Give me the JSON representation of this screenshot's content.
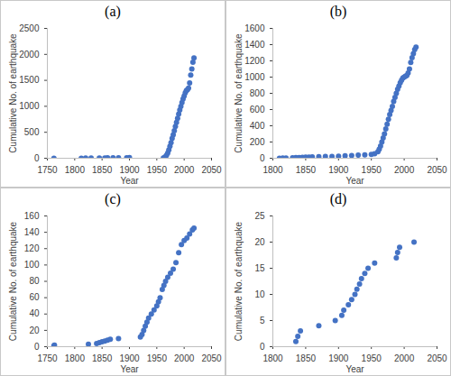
{
  "chart_data": [
    {
      "type": "scatter",
      "title": "(a)",
      "x_label": "Year",
      "y_label": "Cumulative No. of earthquake",
      "color": "#4472c4",
      "marker": "circle",
      "grid": false,
      "x": [
        1762,
        1812,
        1820,
        1830,
        1845,
        1855,
        1860,
        1870,
        1880,
        1895,
        1900,
        1962,
        1964,
        1966,
        1968,
        1970,
        1972,
        1974,
        1976,
        1978,
        1980,
        1982,
        1984,
        1986,
        1988,
        1990,
        1992,
        1994,
        1996,
        1998,
        2000,
        2002,
        2004,
        2006,
        2008,
        2010,
        2012,
        2014,
        2016,
        2018
      ],
      "values": [
        1,
        2,
        3,
        4,
        5,
        6,
        7,
        8,
        9,
        10,
        11,
        5,
        15,
        30,
        60,
        100,
        160,
        230,
        300,
        380,
        450,
        530,
        610,
        690,
        770,
        850,
        930,
        1000,
        1070,
        1140,
        1200,
        1260,
        1300,
        1320,
        1350,
        1450,
        1600,
        1720,
        1850,
        1930
      ],
      "xlim": [
        1750,
        2050
      ],
      "xticks": [
        1750,
        1800,
        1850,
        1900,
        1950,
        2000,
        2050
      ],
      "ylim": [
        0,
        2500
      ],
      "yticks": [
        0,
        500,
        1000,
        1500,
        2000,
        2500
      ]
    },
    {
      "type": "scatter",
      "title": "(b)",
      "x_label": "Year",
      "y_label": "Cumulative No. of earthquake",
      "color": "#4472c4",
      "marker": "circle",
      "grid": false,
      "x": [
        1810,
        1815,
        1820,
        1830,
        1835,
        1840,
        1845,
        1850,
        1855,
        1860,
        1870,
        1880,
        1890,
        1900,
        1910,
        1920,
        1930,
        1940,
        1950,
        1955,
        1960,
        1962,
        1964,
        1966,
        1968,
        1970,
        1972,
        1974,
        1976,
        1978,
        1980,
        1982,
        1984,
        1986,
        1988,
        1990,
        1992,
        1994,
        1996,
        1998,
        2000,
        2002,
        2004,
        2006,
        2008,
        2010,
        2012,
        2014,
        2016,
        2018
      ],
      "values": [
        1,
        2,
        3,
        5,
        7,
        9,
        11,
        13,
        15,
        17,
        19,
        21,
        23,
        26,
        30,
        34,
        38,
        42,
        48,
        55,
        80,
        110,
        150,
        200,
        250,
        300,
        360,
        420,
        480,
        540,
        590,
        640,
        700,
        750,
        800,
        850,
        890,
        930,
        960,
        990,
        1000,
        1010,
        1020,
        1050,
        1100,
        1180,
        1240,
        1290,
        1340,
        1370
      ],
      "xlim": [
        1800,
        2050
      ],
      "xticks": [
        1800,
        1850,
        1900,
        1950,
        2000,
        2050
      ],
      "ylim": [
        0,
        1600
      ],
      "yticks": [
        0,
        200,
        400,
        600,
        800,
        1000,
        1200,
        1400,
        1600
      ]
    },
    {
      "type": "scatter",
      "title": "(c)",
      "x_label": "Year",
      "y_label": "Cumulative No. of earthquake",
      "color": "#4472c4",
      "marker": "circle",
      "grid": false,
      "x": [
        1762,
        1763,
        1825,
        1840,
        1845,
        1850,
        1855,
        1860,
        1865,
        1880,
        1920,
        1923,
        1926,
        1929,
        1932,
        1935,
        1940,
        1945,
        1950,
        1953,
        1956,
        1960,
        1963,
        1966,
        1970,
        1975,
        1980,
        1985,
        1990,
        1995,
        2000,
        2005,
        2010,
        2015,
        2018
      ],
      "values": [
        1,
        2,
        3,
        4,
        5,
        6,
        7,
        8,
        9,
        10,
        12,
        15,
        20,
        25,
        30,
        35,
        40,
        45,
        50,
        55,
        60,
        70,
        75,
        80,
        85,
        90,
        95,
        103,
        115,
        125,
        130,
        133,
        138,
        143,
        145
      ],
      "xlim": [
        1750,
        2050
      ],
      "xticks": [
        1750,
        1800,
        1850,
        1900,
        1950,
        2000,
        2050
      ],
      "ylim": [
        0,
        160
      ],
      "yticks": [
        0,
        20,
        40,
        60,
        80,
        100,
        120,
        140,
        160
      ]
    },
    {
      "type": "scatter",
      "title": "(d)",
      "x_label": "Year",
      "y_label": "Cumulative No. of earthquake",
      "color": "#4472c4",
      "marker": "circle",
      "grid": false,
      "x": [
        1835,
        1838,
        1842,
        1870,
        1895,
        1905,
        1908,
        1915,
        1920,
        1925,
        1928,
        1932,
        1935,
        1940,
        1945,
        1955,
        1988,
        1990,
        1993,
        2015
      ],
      "values": [
        1,
        2,
        3,
        4,
        5,
        6,
        7,
        8,
        9,
        10,
        11,
        12,
        13,
        14,
        15,
        16,
        17,
        18,
        19,
        20
      ],
      "xlim": [
        1800,
        2050
      ],
      "xticks": [
        1800,
        1850,
        1900,
        1950,
        2000,
        2050
      ],
      "ylim": [
        0,
        25
      ],
      "yticks": [
        0,
        5,
        10,
        15,
        20,
        25
      ]
    }
  ]
}
